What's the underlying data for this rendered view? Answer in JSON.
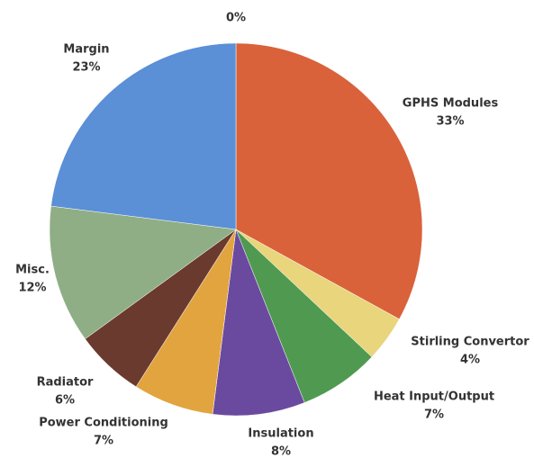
{
  "chart_data": {
    "type": "pie",
    "categories": [
      null,
      "GPHS Modules",
      "Stirling Convertor",
      "Heat Input/Output",
      "Insulation",
      "Power Conditioning",
      "Radiator",
      "Misc.",
      "Margin"
    ],
    "values": [
      0,
      33,
      4,
      7,
      8,
      7,
      6,
      12,
      23
    ],
    "value_labels": [
      "0%",
      "33%",
      "4%",
      "7%",
      "8%",
      "7%",
      "6%",
      "12%",
      "23%"
    ],
    "colors": [
      "#cccccc",
      "#d9623b",
      "#e8d57c",
      "#4f9a50",
      "#6a4a9e",
      "#e2a43f",
      "#6b3a2e",
      "#8fae85",
      "#5b8fd6"
    ]
  }
}
